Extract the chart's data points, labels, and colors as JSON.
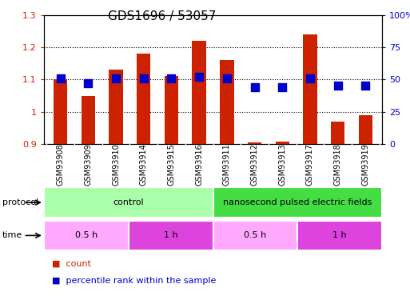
{
  "title": "GDS1696 / 53057",
  "samples": [
    "GSM93908",
    "GSM93909",
    "GSM93910",
    "GSM93914",
    "GSM93915",
    "GSM93916",
    "GSM93911",
    "GSM93912",
    "GSM93913",
    "GSM93917",
    "GSM93918",
    "GSM93919"
  ],
  "bar_values": [
    1.1,
    1.05,
    1.13,
    1.18,
    1.11,
    1.22,
    1.16,
    0.905,
    0.907,
    1.24,
    0.97,
    0.99
  ],
  "percentile_values": [
    51,
    47,
    51,
    51,
    51,
    52,
    51,
    44,
    44,
    51,
    45,
    45
  ],
  "bar_color": "#cc2200",
  "percentile_color": "#0000cc",
  "ylim_left": [
    0.9,
    1.3
  ],
  "ylim_right": [
    0,
    100
  ],
  "yticks_left": [
    0.9,
    1.0,
    1.1,
    1.2,
    1.3
  ],
  "yticks_right": [
    0,
    25,
    50,
    75,
    100
  ],
  "ytick_labels_left": [
    "0.9",
    "1",
    "1.1",
    "1.2",
    "1.3"
  ],
  "ytick_labels_right": [
    "0",
    "25",
    "50",
    "75",
    "100%"
  ],
  "hlines": [
    1.0,
    1.1,
    1.2
  ],
  "protocol_groups": [
    {
      "label": "control",
      "start": 0,
      "end": 6,
      "color": "#aaffaa"
    },
    {
      "label": "nanosecond pulsed electric fields",
      "start": 6,
      "end": 12,
      "color": "#44dd44"
    }
  ],
  "time_groups": [
    {
      "label": "0.5 h",
      "start": 0,
      "end": 3,
      "color": "#ffaaff"
    },
    {
      "label": "1 h",
      "start": 3,
      "end": 6,
      "color": "#dd44dd"
    },
    {
      "label": "0.5 h",
      "start": 6,
      "end": 9,
      "color": "#ffaaff"
    },
    {
      "label": "1 h",
      "start": 9,
      "end": 12,
      "color": "#dd44dd"
    }
  ],
  "legend_items": [
    {
      "label": "count",
      "color": "#cc2200"
    },
    {
      "label": "percentile rank within the sample",
      "color": "#0000cc"
    }
  ],
  "protocol_label": "protocol",
  "time_label": "time",
  "bar_width": 0.5,
  "percentile_marker_size": 7,
  "xtick_bg_color": "#c8c8c8",
  "fig_width": 5.13,
  "fig_height": 3.75,
  "fig_dpi": 100
}
